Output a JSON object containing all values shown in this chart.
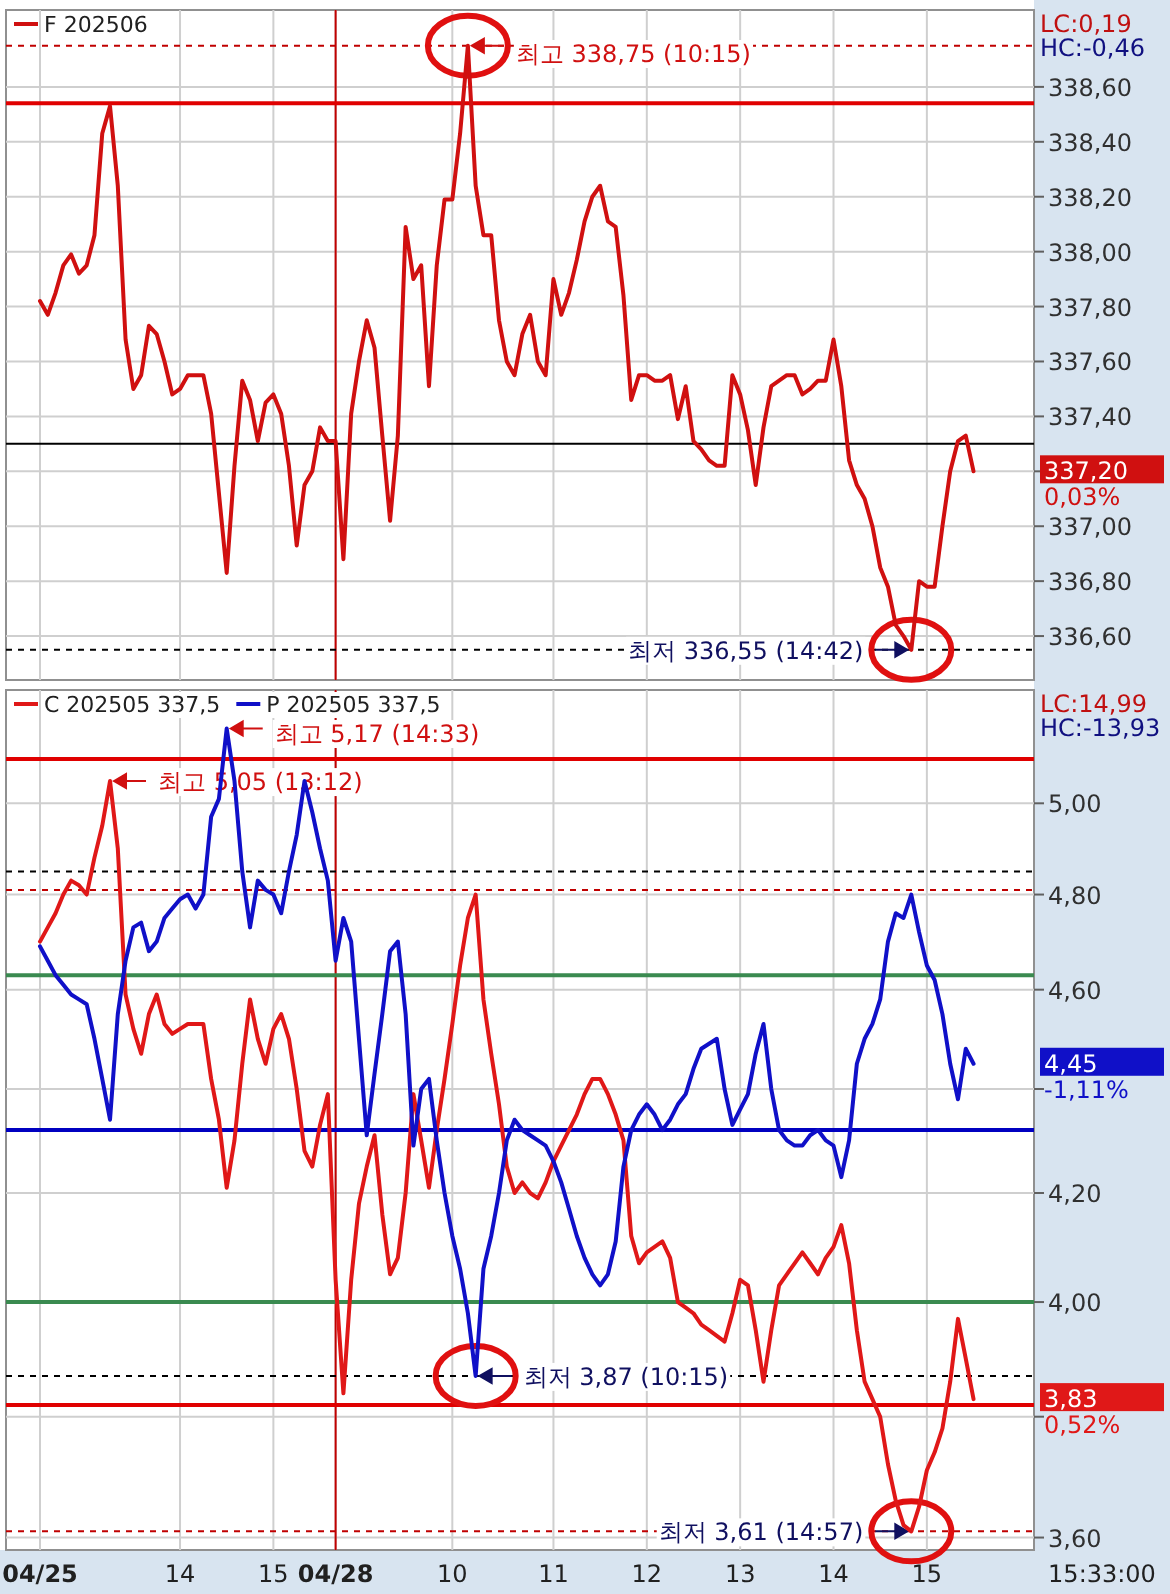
{
  "chart_data": [
    {
      "type": "line",
      "legend": "top left",
      "grid": true,
      "tick_labels": "y",
      "categories": [
        "04/25",
        null,
        null,
        null,
        null,
        null,
        null,
        null,
        null,
        null,
        null,
        null,
        null,
        null,
        null,
        null,
        null,
        null,
        "14",
        null,
        null,
        null,
        null,
        null,
        null,
        null,
        null,
        null,
        null,
        null,
        "15",
        null,
        null,
        null,
        null,
        null,
        null,
        null,
        "04/28",
        null,
        null,
        null,
        null,
        null,
        null,
        null,
        null,
        null,
        null,
        null,
        null,
        null,
        null,
        "10",
        null,
        null,
        null,
        null,
        null,
        null,
        null,
        null,
        null,
        null,
        null,
        null,
        "11",
        null,
        null,
        null,
        null,
        null,
        null,
        null,
        null,
        null,
        null,
        null,
        "12",
        null,
        null,
        null,
        null,
        null,
        null,
        null,
        null,
        null,
        null,
        null,
        "13",
        null,
        null,
        null,
        null,
        null,
        null,
        null,
        null,
        null,
        null,
        null,
        "14",
        null,
        null,
        null,
        null,
        null,
        null,
        null,
        null,
        null,
        null,
        null,
        "15",
        null,
        null,
        null,
        null,
        null,
        null,
        null,
        null,
        null,
        null,
        null,
        null,
        null
      ],
      "ylim": [
        336.44,
        338.88
      ],
      "yticks": [
        {
          "value": 336.6,
          "label": "336,60"
        },
        {
          "value": 336.8,
          "label": "336,80"
        },
        {
          "value": 337.0,
          "label": "337,00"
        },
        {
          "value": 337.2,
          "label": null
        },
        {
          "value": 337.4,
          "label": "337,40"
        },
        {
          "value": 337.6,
          "label": "337,60"
        },
        {
          "value": 337.8,
          "label": "337,80"
        },
        {
          "value": 338.0,
          "label": "338,00"
        },
        {
          "value": 338.2,
          "label": "338,20"
        },
        {
          "value": 338.4,
          "label": "338,40"
        },
        {
          "value": 338.6,
          "label": "338,60"
        }
      ],
      "ref_lines": [
        {
          "axis": "x",
          "value": "04/28",
          "color": "#c00000"
        },
        {
          "axis": "y",
          "value": 338.54,
          "color": "#e00000"
        },
        {
          "axis": "y",
          "value": 337.3,
          "color": "#000000"
        },
        {
          "axis": "y",
          "value": 338.75,
          "color": "#c00000",
          "line_style": "dashed"
        },
        {
          "axis": "y",
          "value": 336.55,
          "color": "#000000",
          "line_style": "dashed"
        }
      ],
      "annotations": [
        "LC:0,19",
        "HC:-0,46",
        "337,20",
        "0,03%",
        {
          "text": "최고 338,75 (10:15)",
          "y": 338.75
        },
        {
          "text": "최저 336,55 (14:42)",
          "y": 336.55
        }
      ],
      "series": [
        {
          "name": "F 202506",
          "color": "#d01010",
          "values": [
            337.82,
            337.77,
            337.85,
            337.95,
            337.99,
            337.92,
            337.95,
            338.06,
            338.43,
            338.53,
            338.24,
            337.68,
            337.5,
            337.55,
            337.73,
            337.7,
            337.6,
            337.48,
            337.5,
            337.55,
            337.55,
            337.55,
            337.41,
            337.12,
            336.83,
            337.22,
            337.53,
            337.46,
            337.31,
            337.45,
            337.48,
            337.41,
            337.22,
            336.93,
            337.15,
            337.2,
            337.36,
            337.31,
            337.31,
            336.88,
            337.41,
            337.6,
            337.75,
            337.65,
            337.33,
            337.02,
            337.33,
            338.09,
            337.9,
            337.95,
            337.51,
            337.95,
            338.19,
            338.19,
            338.43,
            338.75,
            338.24,
            338.06,
            338.06,
            337.75,
            337.6,
            337.55,
            337.7,
            337.77,
            337.6,
            337.55,
            337.9,
            337.77,
            337.85,
            337.97,
            338.11,
            338.2,
            338.24,
            338.11,
            338.09,
            337.84,
            337.46,
            337.55,
            337.55,
            337.53,
            337.53,
            337.55,
            337.39,
            337.51,
            337.31,
            337.28,
            337.24,
            337.22,
            337.22,
            337.55,
            337.48,
            337.35,
            337.15,
            337.36,
            337.51,
            337.53,
            337.55,
            337.55,
            337.48,
            337.5,
            337.53,
            337.53,
            337.68,
            337.51,
            337.24,
            337.15,
            337.1,
            337.0,
            336.85,
            336.78,
            336.64,
            336.6,
            336.55,
            336.8,
            336.78,
            336.78,
            337.0,
            337.2,
            337.31,
            337.33,
            337.2,
            null,
            null,
            null,
            null,
            null,
            null,
            null
          ]
        }
      ]
    },
    {
      "type": "line",
      "legend": "top left",
      "grid": true,
      "log": "y",
      "categories": [
        "04/25",
        null,
        null,
        null,
        null,
        null,
        null,
        null,
        null,
        null,
        null,
        null,
        null,
        null,
        null,
        null,
        null,
        null,
        "14",
        null,
        null,
        null,
        null,
        null,
        null,
        null,
        null,
        null,
        null,
        null,
        "15",
        null,
        null,
        null,
        null,
        null,
        null,
        null,
        "04/28",
        null,
        null,
        null,
        null,
        null,
        null,
        null,
        null,
        null,
        null,
        null,
        null,
        null,
        null,
        "10",
        null,
        null,
        null,
        null,
        null,
        null,
        null,
        null,
        null,
        null,
        null,
        null,
        "11",
        null,
        null,
        null,
        null,
        null,
        null,
        null,
        null,
        null,
        null,
        null,
        "12",
        null,
        null,
        null,
        null,
        null,
        null,
        null,
        null,
        null,
        null,
        null,
        "13",
        null,
        null,
        null,
        null,
        null,
        null,
        null,
        null,
        null,
        null,
        null,
        "14",
        null,
        null,
        null,
        null,
        null,
        null,
        null,
        null,
        null,
        null,
        null,
        "15",
        null,
        null,
        null,
        null,
        null,
        null,
        null,
        null,
        null,
        null,
        null,
        null,
        null
      ],
      "ylim": [
        3.58,
        5.26
      ],
      "yticks": [
        {
          "value": 3.6,
          "label": "3,60"
        },
        {
          "value": 3.8,
          "label": null
        },
        {
          "value": 4.0,
          "label": "4,00"
        },
        {
          "value": 4.2,
          "label": "4,20"
        },
        {
          "value": 4.4,
          "label": null
        },
        {
          "value": 4.6,
          "label": "4,60"
        },
        {
          "value": 4.8,
          "label": "4,80"
        },
        {
          "value": 5.0,
          "label": "5,00"
        }
      ],
      "ref_lines": [
        {
          "axis": "x",
          "value": "04/28",
          "color": "#c00000"
        },
        {
          "axis": "y",
          "value": 5.1,
          "color": "#e00000"
        },
        {
          "axis": "y",
          "value": 3.82,
          "color": "#e00000"
        },
        {
          "axis": "y",
          "value": 4.32,
          "color": "#0000c0"
        },
        {
          "axis": "y",
          "value": 4.63,
          "color": "#3a8a50"
        },
        {
          "axis": "y",
          "value": 4.0,
          "color": "#3a8a50"
        },
        {
          "axis": "y",
          "value": 4.85,
          "color": "#000000",
          "line_style": "dashed"
        },
        {
          "axis": "y",
          "value": 4.81,
          "color": "#c00000",
          "line_style": "dashed"
        },
        {
          "axis": "y",
          "value": 3.87,
          "color": "#000000",
          "line_style": "dashed"
        },
        {
          "axis": "y",
          "value": 3.61,
          "color": "#c00000",
          "line_style": "dashed"
        }
      ],
      "annotations": [
        "LC:14,99",
        "HC:-13,93",
        "3,83",
        "0,52%",
        "4,45",
        "-1,11%",
        "15:33:00",
        "최고 5,05 (13:12)",
        "최고 5,17 (14:33)",
        {
          "text": "최저 3,87 (10:15)",
          "y": 3.87
        },
        {
          "text": "최저 3,61 (14:57)",
          "y": 3.61
        }
      ],
      "series": [
        {
          "name": "C 202505 337,5",
          "color": "#e01818",
          "values": [
            4.7,
            4.73,
            4.76,
            4.8,
            4.83,
            4.82,
            4.8,
            4.88,
            4.95,
            5.05,
            4.9,
            4.59,
            4.52,
            4.47,
            4.55,
            4.59,
            4.53,
            4.51,
            4.52,
            4.53,
            4.53,
            4.53,
            4.42,
            4.34,
            4.21,
            4.3,
            4.45,
            4.58,
            4.5,
            4.45,
            4.52,
            4.55,
            4.5,
            4.4,
            4.28,
            4.25,
            4.33,
            4.39,
            4.04,
            3.84,
            4.04,
            4.18,
            4.25,
            4.31,
            4.16,
            4.05,
            4.08,
            4.2,
            4.39,
            4.3,
            4.21,
            4.32,
            4.42,
            4.53,
            4.65,
            4.75,
            4.8,
            4.58,
            4.47,
            4.37,
            4.25,
            4.2,
            4.22,
            4.2,
            4.19,
            4.22,
            4.26,
            4.29,
            4.32,
            4.35,
            4.39,
            4.42,
            4.42,
            4.39,
            4.35,
            4.3,
            4.12,
            4.07,
            4.09,
            4.1,
            4.11,
            4.08,
            4.0,
            3.99,
            3.98,
            3.96,
            3.95,
            3.94,
            3.93,
            3.98,
            4.04,
            4.03,
            3.95,
            3.86,
            3.95,
            4.03,
            4.05,
            4.07,
            4.09,
            4.07,
            4.05,
            4.08,
            4.1,
            4.14,
            4.07,
            3.95,
            3.86,
            3.83,
            3.8,
            3.72,
            3.66,
            3.62,
            3.61,
            3.65,
            3.71,
            3.74,
            3.78,
            3.86,
            3.97,
            3.9,
            3.83,
            null,
            null,
            null,
            null,
            null,
            null,
            null
          ]
        },
        {
          "name": "P 202505 337,5",
          "color": "#1010c8",
          "values": [
            4.69,
            4.66,
            4.63,
            4.61,
            4.59,
            4.58,
            4.57,
            4.5,
            4.42,
            4.34,
            4.55,
            4.66,
            4.73,
            4.74,
            4.68,
            4.7,
            4.75,
            4.77,
            4.79,
            4.8,
            4.77,
            4.8,
            4.97,
            5.01,
            5.17,
            5.05,
            4.85,
            4.73,
            4.83,
            4.81,
            4.8,
            4.76,
            4.85,
            4.93,
            5.05,
            4.98,
            4.9,
            4.83,
            4.66,
            4.75,
            4.7,
            4.5,
            4.31,
            4.43,
            4.55,
            4.68,
            4.7,
            4.55,
            4.29,
            4.4,
            4.42,
            4.3,
            4.2,
            4.12,
            4.06,
            3.98,
            3.87,
            4.06,
            4.12,
            4.2,
            4.3,
            4.34,
            4.32,
            4.31,
            4.3,
            4.29,
            4.26,
            4.22,
            4.17,
            4.12,
            4.08,
            4.05,
            4.03,
            4.05,
            4.11,
            4.25,
            4.32,
            4.35,
            4.37,
            4.35,
            4.32,
            4.34,
            4.37,
            4.39,
            4.44,
            4.48,
            4.49,
            4.5,
            4.4,
            4.33,
            4.36,
            4.39,
            4.47,
            4.53,
            4.4,
            4.32,
            4.3,
            4.29,
            4.29,
            4.31,
            4.32,
            4.3,
            4.29,
            4.23,
            4.3,
            4.45,
            4.5,
            4.53,
            4.58,
            4.7,
            4.76,
            4.75,
            4.8,
            4.72,
            4.65,
            4.62,
            4.55,
            4.45,
            4.38,
            4.48,
            4.45,
            null,
            null,
            null,
            null,
            null,
            null,
            null
          ]
        }
      ]
    }
  ]
}
